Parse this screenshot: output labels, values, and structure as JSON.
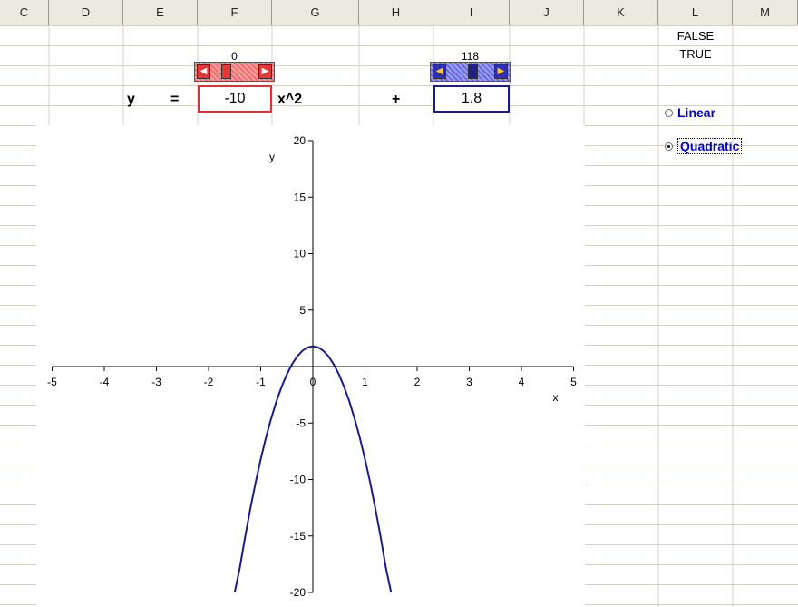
{
  "columns": [
    "C",
    "D",
    "E",
    "F",
    "G",
    "H",
    "I",
    "J",
    "K",
    "L",
    "M"
  ],
  "cells": {
    "l1": "FALSE",
    "l2": "TRUE"
  },
  "slider_a": {
    "value_label": "0",
    "position": 0.25,
    "color": "#e23838",
    "thumb_color": "#e23838"
  },
  "slider_b": {
    "value_label": "118",
    "position": 0.55,
    "color": "#3a3ad4",
    "thumb_color": "#1f1f8a"
  },
  "formula": {
    "y": "y",
    "equals": "=",
    "coef": "-10",
    "power": "x^2",
    "plus": "+",
    "const": "1.8"
  },
  "radios": {
    "linear": {
      "label": "Linear",
      "checked": false
    },
    "quadratic": {
      "label": "Quadratic",
      "checked": true
    }
  },
  "chart_data": {
    "type": "line",
    "title": "",
    "xlabel": "x",
    "ylabel": "y",
    "xlim": [
      -5,
      5
    ],
    "ylim": [
      -20,
      20
    ],
    "x_ticks": [
      -5,
      -4,
      -3,
      -2,
      -1,
      0,
      1,
      2,
      3,
      4,
      5
    ],
    "y_ticks": [
      20,
      15,
      10,
      5,
      0,
      -5,
      -10,
      -15,
      -20
    ],
    "series": [
      {
        "function": "y = -10x^2 + 1.8",
        "color": "#1a1a8c",
        "x": [
          -1.5,
          -1.4,
          -1.3,
          -1.2,
          -1.1,
          -1.0,
          -0.9,
          -0.8,
          -0.7,
          -0.6,
          -0.5,
          -0.4,
          -0.3,
          -0.2,
          -0.1,
          0,
          0.1,
          0.2,
          0.3,
          0.4,
          0.5,
          0.6,
          0.7,
          0.8,
          0.9,
          1.0,
          1.1,
          1.2,
          1.3,
          1.4,
          1.5
        ],
        "y": [
          -20.7,
          -17.8,
          -15.1,
          -12.6,
          -10.3,
          -8.2,
          -6.3,
          -4.6,
          -3.1,
          -1.8,
          -0.7,
          0.2,
          0.9,
          1.4,
          1.7,
          1.8,
          1.7,
          1.4,
          0.9,
          0.2,
          -0.7,
          -1.8,
          -3.1,
          -4.6,
          -6.3,
          -8.2,
          -10.3,
          -12.6,
          -15.1,
          -17.8,
          -20.7
        ]
      }
    ]
  }
}
